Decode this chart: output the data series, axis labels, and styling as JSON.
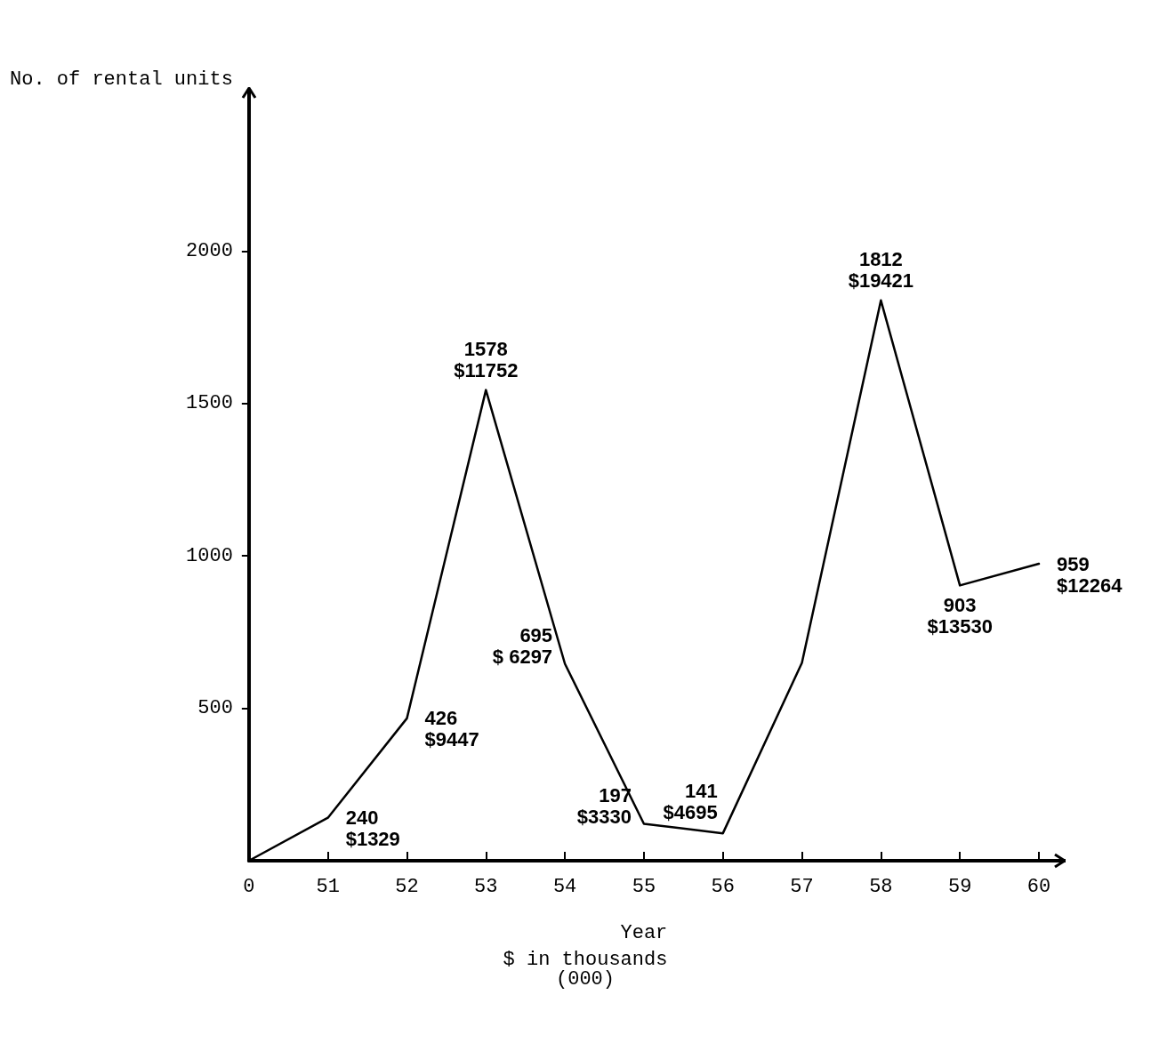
{
  "chart_data": {
    "type": "line",
    "xlabel": "Year",
    "ylabel": "No. of rental units",
    "categories": [
      "0",
      "51",
      "52",
      "53",
      "54",
      "55",
      "56",
      "57",
      "58",
      "59",
      "60"
    ],
    "values": [
      0,
      141,
      467,
      1544,
      646,
      121,
      90,
      649,
      1838,
      903,
      974
    ],
    "color": "#000000",
    "ylim": [
      0,
      2450
    ],
    "yticks": [
      500,
      1000,
      1500,
      2000
    ],
    "grid": false,
    "marker": "none",
    "line_style": "solid",
    "annotations": [
      {
        "text": "240\n$1329",
        "x": "51",
        "y": 141
      },
      {
        "text": "426\n$9447",
        "x": "52",
        "y": 467
      },
      {
        "text": "1578\n$11752",
        "x": "53",
        "y": 1544
      },
      {
        "text": "695\n$ 6297",
        "x": "54",
        "y": 646
      },
      {
        "text": "197\n$3330",
        "x": "55",
        "y": 121
      },
      {
        "text": "141\n$4695",
        "x": "56",
        "y": 90
      },
      {
        "text": "1812\n$19421",
        "x": "58",
        "y": 1838
      },
      {
        "text": "903\n$13530",
        "x": "59",
        "y": 903
      },
      {
        "text": "959\n$12264",
        "x": "60",
        "y": 974
      },
      "$ in thousands\n(000)"
    ]
  }
}
